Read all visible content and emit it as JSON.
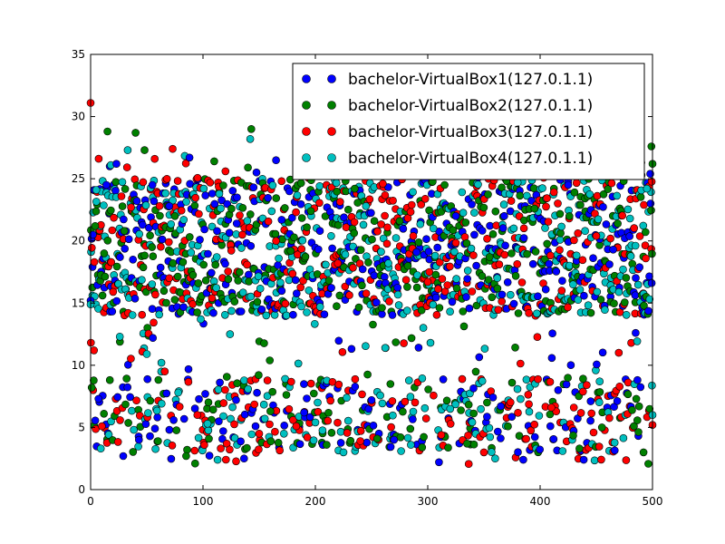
{
  "chart_data": {
    "type": "scatter",
    "title": "",
    "xlabel": "",
    "ylabel": "",
    "xlim": [
      0,
      500
    ],
    "ylim": [
      0,
      35
    ],
    "x_ticks": [
      0,
      100,
      200,
      300,
      400,
      500
    ],
    "y_ticks": [
      0,
      5,
      10,
      15,
      20,
      25,
      30,
      35
    ],
    "grid": false,
    "legend_position": "top-right",
    "series": [
      {
        "name": "bachelor-VirtualBox1(127.0.1.1)",
        "color": "#0000ff"
      },
      {
        "name": "bachelor-VirtualBox2(127.0.1.1)",
        "color": "#008000"
      },
      {
        "name": "bachelor-VirtualBox3(127.0.1.1)",
        "color": "#ff0000"
      },
      {
        "name": "bachelor-VirtualBox4(127.0.1.1)",
        "color": "#00bfbf"
      }
    ],
    "sample_points": [
      [
        0,
        0,
        15.2
      ],
      [
        0,
        3,
        14.9
      ],
      [
        0,
        2,
        31.1
      ],
      [
        1,
        1,
        8.2
      ],
      [
        2,
        0,
        20.5
      ],
      [
        3,
        2,
        11.2
      ],
      [
        4,
        1,
        21.2
      ],
      [
        5,
        3,
        24.1
      ],
      [
        7,
        0,
        7.3
      ],
      [
        9,
        3,
        3.3
      ],
      [
        10,
        2,
        5.1
      ],
      [
        12,
        1,
        19.0
      ],
      [
        14,
        0,
        24.5
      ],
      [
        15,
        1,
        28.8
      ],
      [
        17,
        0,
        26.0
      ],
      [
        18,
        3,
        26.1
      ],
      [
        20,
        2,
        15.9
      ],
      [
        23,
        0,
        26.2
      ],
      [
        26,
        3,
        12.3
      ],
      [
        29,
        0,
        2.7
      ],
      [
        30,
        1,
        20.8
      ],
      [
        33,
        3,
        27.3
      ],
      [
        36,
        2,
        22.7
      ],
      [
        40,
        1,
        28.7
      ],
      [
        43,
        0,
        4.0
      ],
      [
        46,
        2,
        11.1
      ],
      [
        48,
        1,
        27.3
      ],
      [
        50,
        3,
        10.9
      ],
      [
        55,
        0,
        24.5
      ],
      [
        57,
        2,
        26.6
      ],
      [
        60,
        1,
        3.9
      ],
      [
        63,
        3,
        10.2
      ],
      [
        66,
        2,
        9.5
      ],
      [
        70,
        0,
        22.8
      ],
      [
        73,
        2,
        27.4
      ],
      [
        75,
        1,
        22.0
      ],
      [
        78,
        3,
        7.8
      ],
      [
        85,
        1,
        2.7
      ],
      [
        88,
        0,
        26.7
      ],
      [
        93,
        1,
        2.1
      ],
      [
        95,
        2,
        6.0
      ],
      [
        98,
        3,
        13.7
      ],
      [
        102,
        0,
        7.7
      ],
      [
        104,
        3,
        5.3
      ],
      [
        108,
        2,
        15.4
      ],
      [
        110,
        1,
        26.4
      ],
      [
        113,
        3,
        2.4
      ],
      [
        118,
        0,
        4.7
      ],
      [
        120,
        2,
        25.6
      ],
      [
        124,
        3,
        12.5
      ],
      [
        130,
        0,
        21.4
      ],
      [
        135,
        2,
        20.5
      ],
      [
        140,
        1,
        25.9
      ],
      [
        142,
        3,
        28.2
      ],
      [
        143,
        1,
        29.0
      ],
      [
        145,
        0,
        24.3
      ],
      [
        150,
        2,
        4.5
      ],
      [
        155,
        3,
        5.7
      ],
      [
        160,
        1,
        6.3
      ],
      [
        165,
        2,
        20.0
      ],
      [
        170,
        0,
        21.7
      ],
      [
        172,
        3,
        4.5
      ],
      [
        178,
        1,
        19.2
      ],
      [
        183,
        2,
        5.1
      ],
      [
        190,
        0,
        6.2
      ],
      [
        196,
        1,
        22.4
      ],
      [
        200,
        3,
        5.4
      ],
      [
        205,
        2,
        25.7
      ],
      [
        210,
        1,
        3.6
      ],
      [
        215,
        0,
        19.4
      ],
      [
        220,
        2,
        18.2
      ],
      [
        225,
        3,
        3.0
      ],
      [
        230,
        0,
        26.0
      ],
      [
        235,
        1,
        24.2
      ],
      [
        240,
        2,
        3.9
      ],
      [
        245,
        3,
        22.8
      ],
      [
        250,
        0,
        7.2
      ],
      [
        255,
        1,
        4.1
      ],
      [
        260,
        2,
        24.6
      ],
      [
        265,
        3,
        18.2
      ],
      [
        270,
        0,
        4.0
      ],
      [
        275,
        1,
        21.6
      ],
      [
        280,
        2,
        26.6
      ],
      [
        285,
        3,
        3.6
      ],
      [
        290,
        0,
        19.1
      ],
      [
        295,
        1,
        3.4
      ],
      [
        300,
        2,
        16.7
      ],
      [
        305,
        3,
        21.0
      ],
      [
        310,
        0,
        2.2
      ],
      [
        312,
        2,
        4.4
      ],
      [
        315,
        1,
        24.5
      ],
      [
        320,
        3,
        6.5
      ],
      [
        325,
        0,
        22.0
      ],
      [
        330,
        2,
        27.1
      ],
      [
        335,
        1,
        3.7
      ],
      [
        340,
        3,
        26.0
      ],
      [
        345,
        0,
        25.1
      ],
      [
        350,
        2,
        3.0
      ],
      [
        355,
        1,
        18.7
      ],
      [
        360,
        3,
        2.5
      ],
      [
        365,
        0,
        6.7
      ],
      [
        370,
        2,
        25.7
      ],
      [
        375,
        1,
        8.6
      ],
      [
        380,
        3,
        24.7
      ],
      [
        385,
        0,
        2.4
      ],
      [
        390,
        2,
        14.2
      ],
      [
        395,
        1,
        22.6
      ],
      [
        400,
        3,
        26.3
      ],
      [
        405,
        0,
        16.1
      ],
      [
        410,
        2,
        6.6
      ],
      [
        415,
        1,
        26.2
      ],
      [
        420,
        3,
        3.1
      ],
      [
        425,
        0,
        24.5
      ],
      [
        430,
        2,
        6.6
      ],
      [
        435,
        1,
        3.3
      ],
      [
        440,
        3,
        20.8
      ],
      [
        445,
        0,
        7.1
      ],
      [
        450,
        2,
        20.4
      ],
      [
        455,
        1,
        5.0
      ],
      [
        460,
        3,
        26.1
      ],
      [
        465,
        0,
        19.3
      ],
      [
        470,
        2,
        11.0
      ],
      [
        475,
        1,
        26.0
      ],
      [
        480,
        3,
        21.8
      ],
      [
        485,
        0,
        12.6
      ],
      [
        490,
        2,
        26.3
      ],
      [
        492,
        1,
        3.0
      ],
      [
        495,
        3,
        24.2
      ],
      [
        498,
        0,
        25.4
      ],
      [
        499,
        1,
        27.6
      ],
      [
        500,
        2,
        5.2
      ],
      [
        500,
        3,
        6.0
      ],
      [
        500,
        1,
        26.2
      ]
    ],
    "dense_band": {
      "x_range": [
        0,
        500
      ],
      "y_range": [
        2,
        27
      ],
      "points_per_series": 500
    }
  }
}
